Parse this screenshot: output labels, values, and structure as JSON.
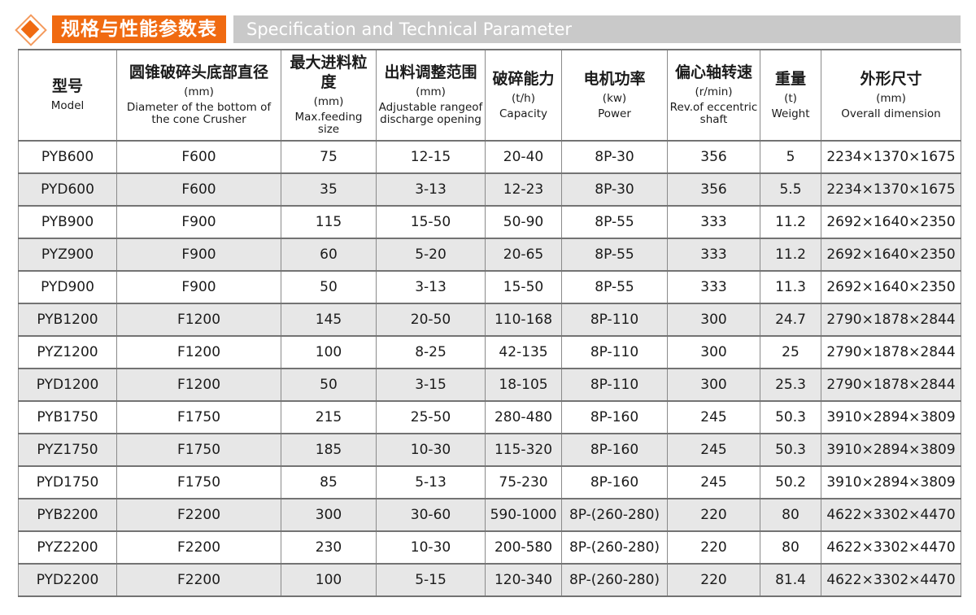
{
  "colors": {
    "accent_orange": "#f06a11",
    "header_bar_gray": "#c9c9c9",
    "row_alt_gray": "#e7e7e7",
    "table_border_gray": "#7f7f7f"
  },
  "page_header": {
    "icon": "orange-diamond-icon",
    "title_zh": "规格与性能参数表",
    "title_en": "Specification and Technical Parameter"
  },
  "table": {
    "columns": [
      {
        "key": "model",
        "zh": "型号",
        "unit": "",
        "en": "Model"
      },
      {
        "key": "diameter",
        "zh": "圆锥破碎头底部直径",
        "unit": "(mm)",
        "en": "Diameter of the bottom of the cone Crusher"
      },
      {
        "key": "max_feeding",
        "zh": "最大进料粒度",
        "unit": "(mm)",
        "en": "Max.feeding size"
      },
      {
        "key": "discharge_range",
        "zh": "出料调整范围",
        "unit": "(mm)",
        "en": "Adjustable rangeof discharge opening"
      },
      {
        "key": "capacity",
        "zh": "破碎能力",
        "unit": "(t/h)",
        "en": "Capacity"
      },
      {
        "key": "power",
        "zh": "电机功率",
        "unit": "(kw)",
        "en": "Power"
      },
      {
        "key": "rev",
        "zh": "偏心轴转速",
        "unit": "(r/min)",
        "en": "Rev.of eccentric shaft"
      },
      {
        "key": "weight",
        "zh": "重量",
        "unit": "(t)",
        "en": "Weight"
      },
      {
        "key": "dimension",
        "zh": "外形尺寸",
        "unit": "(mm)",
        "en": "Overall dimension"
      }
    ],
    "rows": [
      [
        "PYB600",
        "F600",
        "75",
        "12-15",
        "20-40",
        "8P-30",
        "356",
        "5",
        "2234×1370×1675"
      ],
      [
        "PYD600",
        "F600",
        "35",
        "3-13",
        "12-23",
        "8P-30",
        "356",
        "5.5",
        "2234×1370×1675"
      ],
      [
        "PYB900",
        "F900",
        "115",
        "15-50",
        "50-90",
        "8P-55",
        "333",
        "11.2",
        "2692×1640×2350"
      ],
      [
        "PYZ900",
        "F900",
        "60",
        "5-20",
        "20-65",
        "8P-55",
        "333",
        "11.2",
        "2692×1640×2350"
      ],
      [
        "PYD900",
        "F900",
        "50",
        "3-13",
        "15-50",
        "8P-55",
        "333",
        "11.3",
        "2692×1640×2350"
      ],
      [
        "PYB1200",
        "F1200",
        "145",
        "20-50",
        "110-168",
        "8P-110",
        "300",
        "24.7",
        "2790×1878×2844"
      ],
      [
        "PYZ1200",
        "F1200",
        "100",
        "8-25",
        "42-135",
        "8P-110",
        "300",
        "25",
        "2790×1878×2844"
      ],
      [
        "PYD1200",
        "F1200",
        "50",
        "3-15",
        "18-105",
        "8P-110",
        "300",
        "25.3",
        "2790×1878×2844"
      ],
      [
        "PYB1750",
        "F1750",
        "215",
        "25-50",
        "280-480",
        "8P-160",
        "245",
        "50.3",
        "3910×2894×3809"
      ],
      [
        "PYZ1750",
        "F1750",
        "185",
        "10-30",
        "115-320",
        "8P-160",
        "245",
        "50.3",
        "3910×2894×3809"
      ],
      [
        "PYD1750",
        "F1750",
        "85",
        "5-13",
        "75-230",
        "8P-160",
        "245",
        "50.2",
        "3910×2894×3809"
      ],
      [
        "PYB2200",
        "F2200",
        "300",
        "30-60",
        "590-1000",
        "8P-(260-280)",
        "220",
        "80",
        "4622×3302×4470"
      ],
      [
        "PYZ2200",
        "F2200",
        "230",
        "10-30",
        "200-580",
        "8P-(260-280)",
        "220",
        "80",
        "4622×3302×4470"
      ],
      [
        "PYD2200",
        "F2200",
        "100",
        "5-15",
        "120-340",
        "8P-(260-280)",
        "220",
        "81.4",
        "4622×3302×4470"
      ]
    ]
  }
}
